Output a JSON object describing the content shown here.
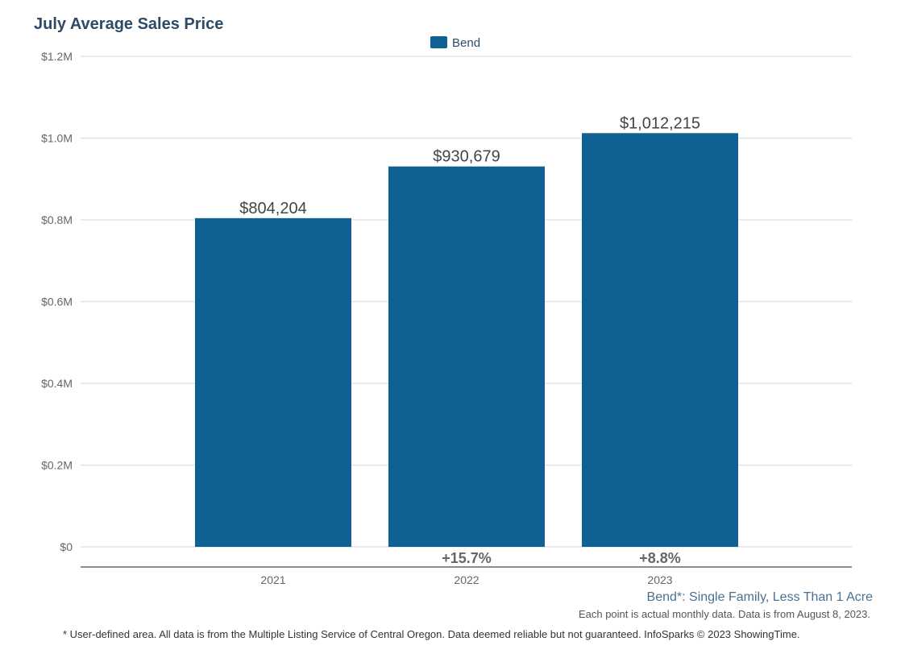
{
  "chart_data": {
    "type": "bar",
    "title": "July Average Sales Price",
    "categories": [
      "2021",
      "2022",
      "2023"
    ],
    "series": [
      {
        "name": "Bend",
        "values": [
          804204,
          930679,
          1012215
        ],
        "color": "#0f6193"
      }
    ],
    "data_labels": [
      "$804,204",
      "$930,679",
      "$1,012,215"
    ],
    "change_labels": [
      "",
      "+15.7%",
      "+8.8%"
    ],
    "ylim": [
      0,
      1200000
    ],
    "yticks": [
      0,
      200000,
      400000,
      600000,
      800000,
      1000000,
      1200000
    ],
    "ytick_labels": [
      "$0",
      "$0.2M",
      "$0.4M",
      "$0.6M",
      "$0.8M",
      "$1.0M",
      "$1.2M"
    ],
    "grid": true,
    "legend": "top-center"
  },
  "footer": {
    "area": "Bend*: Single Family, Less Than 1 Acre",
    "note": "Each point is actual monthly data. Data is from August 8, 2023.",
    "disclaimer": "* User-defined area. All data is from the Multiple Listing Service of Central Oregon. Data deemed reliable but not guaranteed. InfoSparks © 2023 ShowingTime."
  }
}
